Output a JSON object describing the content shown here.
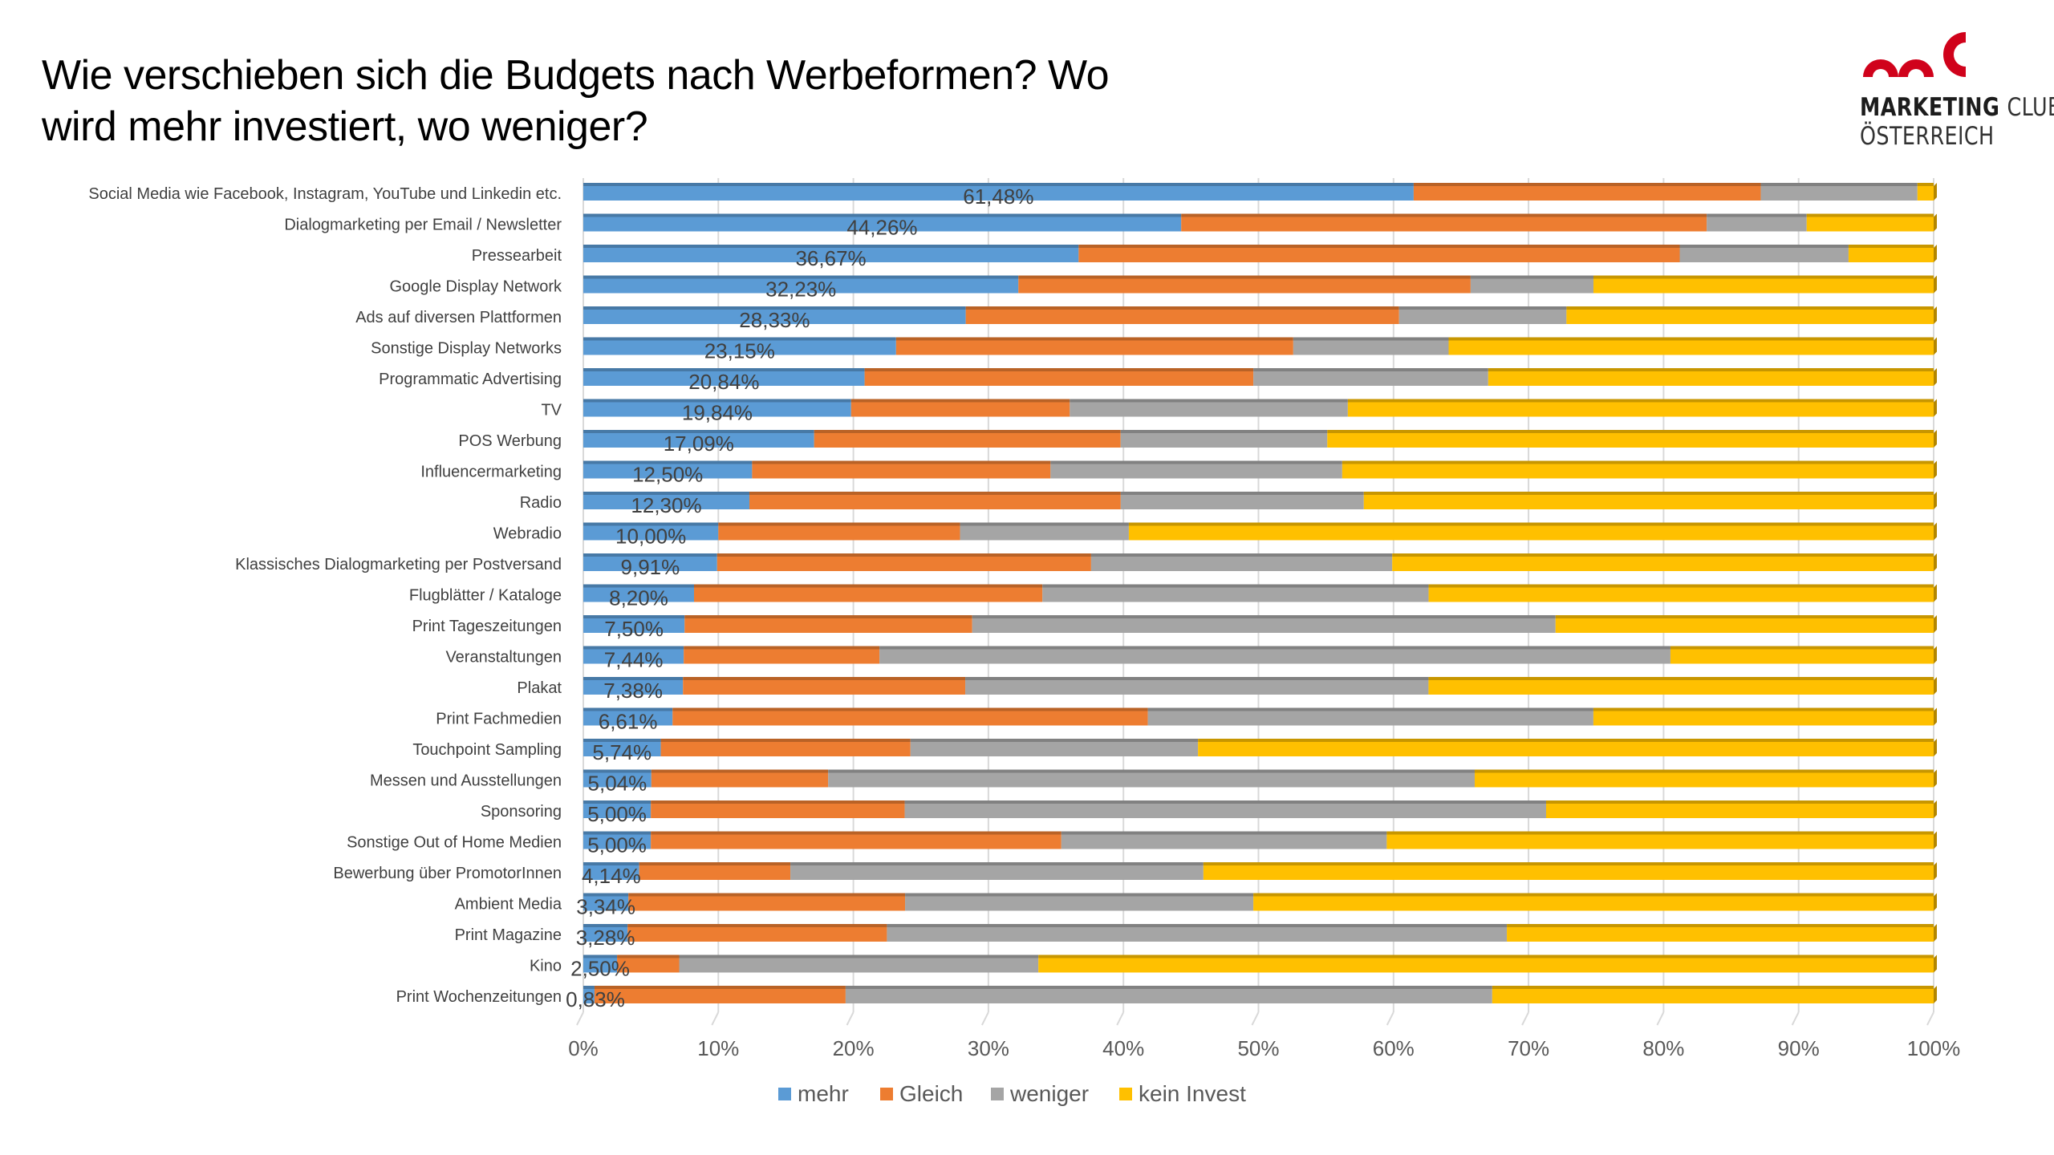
{
  "title": {
    "line1": "Wie verschieben sich die Budgets nach Werbeformen? Wo",
    "line2": "wird mehr investiert, wo weniger?"
  },
  "logo": {
    "icon": "mc-logo-icon",
    "line1_bold": "MARKETING",
    "line1_light": "CLUB",
    "line2": "ÖSTERREICH",
    "color": "#d0021b"
  },
  "chart_data": {
    "type": "bar",
    "orientation": "horizontal",
    "stacked": "100%",
    "title": "Wie verschieben sich die Budgets nach Werbeformen? Wo wird mehr investiert, wo weniger?",
    "xlabel": "",
    "ylabel": "",
    "xlim": [
      0,
      100
    ],
    "x_ticks": [
      "0%",
      "10%",
      "20%",
      "30%",
      "40%",
      "50%",
      "60%",
      "70%",
      "80%",
      "90%",
      "100%"
    ],
    "grid": "vertical",
    "legend_position": "bottom",
    "categories": [
      "Social Media wie Facebook, Instagram, YouTube und Linkedin etc.",
      "Dialogmarketing per Email / Newsletter",
      "Pressearbeit",
      "Google Display Network",
      "Ads auf diversen Plattformen",
      "Sonstige Display Networks",
      "Programmatic Advertising",
      "TV",
      "POS Werbung",
      "Influencermarketing",
      "Radio",
      "Webradio",
      "Klassisches Dialogmarketing per Postversand",
      "Flugblätter / Kataloge",
      "Print Tageszeitungen",
      "Veranstaltungen",
      "Plakat",
      "Print Fachmedien",
      "Touchpoint Sampling",
      "Messen und Ausstellungen",
      "Sponsoring",
      "Sonstige Out of Home Medien",
      "Bewerbung über PromotorInnen",
      "Ambient Media",
      "Print Magazine",
      "Kino",
      "Print Wochenzeitungen"
    ],
    "series": [
      {
        "name": "mehr",
        "color": "#5b9bd5",
        "values": [
          61.48,
          44.26,
          36.67,
          32.23,
          28.33,
          23.15,
          20.84,
          19.84,
          17.09,
          12.5,
          12.3,
          10.0,
          9.91,
          8.2,
          7.5,
          7.44,
          7.38,
          6.61,
          5.74,
          5.04,
          5.0,
          5.0,
          4.14,
          3.34,
          3.28,
          2.5,
          0.83
        ]
      },
      {
        "name": "Gleich",
        "color": "#ed7d31",
        "values": [
          25.7,
          38.9,
          44.5,
          33.5,
          32.1,
          29.4,
          28.8,
          16.2,
          22.7,
          22.1,
          27.5,
          17.9,
          27.7,
          25.8,
          21.3,
          14.5,
          20.9,
          35.2,
          18.5,
          13.1,
          18.8,
          30.4,
          11.2,
          20.5,
          19.2,
          4.6,
          18.6
        ]
      },
      {
        "name": "weniger",
        "color": "#a5a5a5",
        "values": [
          11.6,
          7.4,
          12.5,
          9.1,
          12.4,
          11.5,
          17.4,
          20.6,
          15.3,
          21.6,
          18.0,
          12.5,
          22.3,
          28.6,
          43.2,
          58.6,
          34.3,
          33.0,
          21.3,
          47.9,
          47.5,
          24.1,
          30.6,
          25.8,
          45.9,
          26.6,
          47.9
        ]
      },
      {
        "name": "kein Invest",
        "color": "#ffc000",
        "values": [
          1.2,
          9.4,
          6.3,
          25.2,
          27.2,
          35.9,
          33.0,
          43.4,
          44.9,
          43.8,
          42.2,
          59.6,
          40.1,
          37.4,
          28.0,
          19.5,
          37.4,
          25.2,
          54.5,
          34.0,
          28.7,
          40.5,
          54.1,
          50.4,
          31.6,
          66.3,
          32.7
        ]
      }
    ],
    "data_labels": [
      "61,48%",
      "44,26%",
      "36,67%",
      "32,23%",
      "28,33%",
      "23,15%",
      "20,84%",
      "19,84%",
      "17,09%",
      "12,50%",
      "12,30%",
      "10,00%",
      "9,91%",
      "8,20%",
      "7,50%",
      "7,44%",
      "7,38%",
      "6,61%",
      "5,74%",
      "5,04%",
      "5,00%",
      "5,00%",
      "4,14%",
      "3,34%",
      "3,28%",
      "2,50%",
      "0,83%"
    ]
  }
}
